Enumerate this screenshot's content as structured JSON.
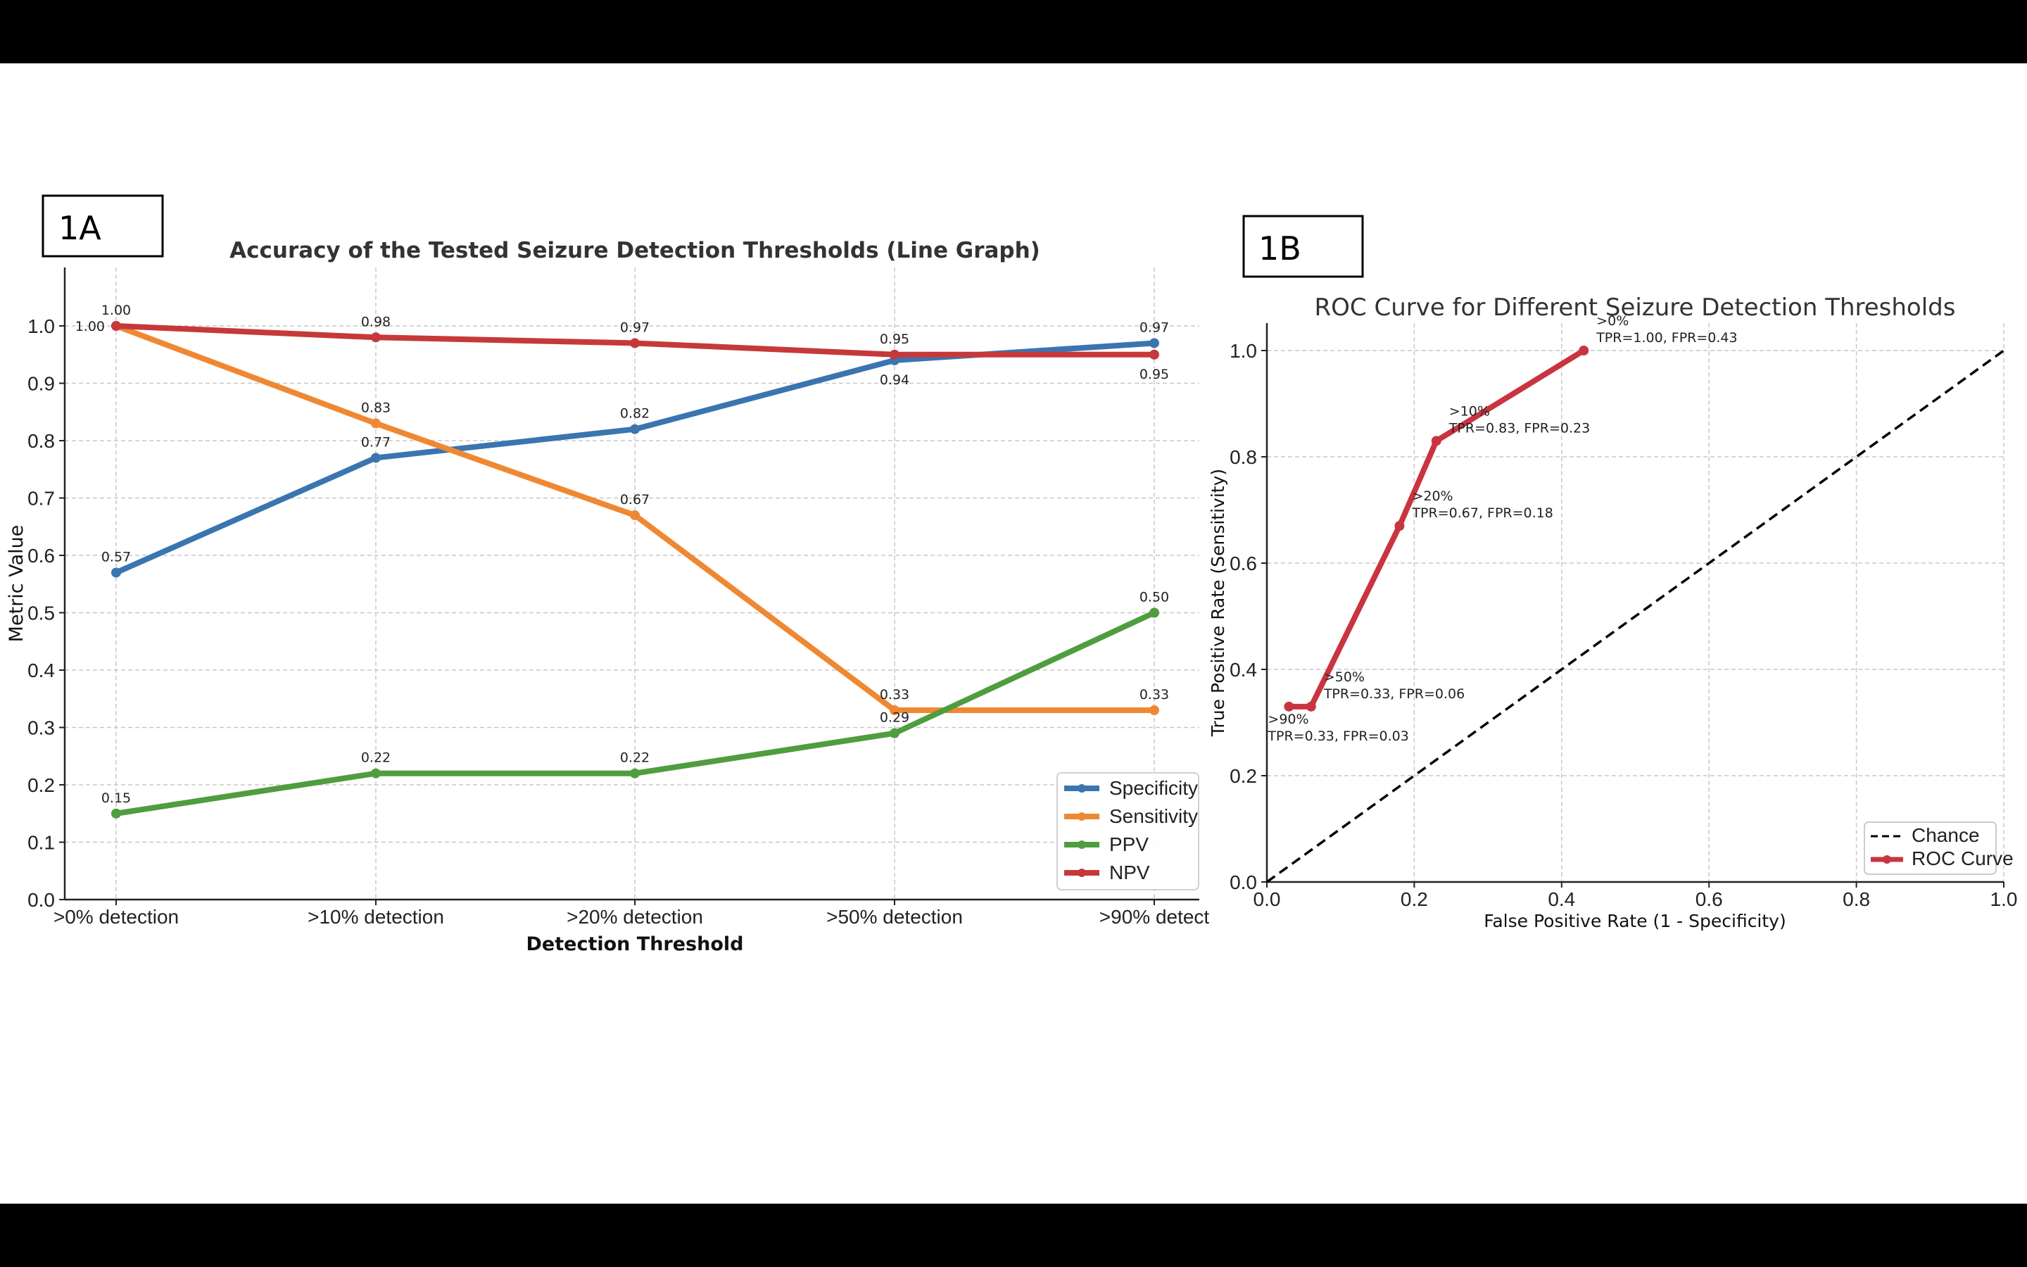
{
  "panel_labels": {
    "a": "1A",
    "b": "1B"
  },
  "chart_data": [
    {
      "type": "line",
      "title": "Accuracy of the Tested Seizure Detection Thresholds (Line Graph)",
      "xlabel": "Detection Threshold",
      "ylabel": "Metric Value",
      "categories": [
        ">0% detection",
        ">10% detection",
        ">20% detection",
        ">50% detection",
        ">90% detect"
      ],
      "ylim": [
        0,
        1.1
      ],
      "yticks": [
        "0.0",
        "0.1",
        "0.2",
        "0.3",
        "0.4",
        "0.5",
        "0.6",
        "0.7",
        "0.8",
        "0.9",
        "1.0"
      ],
      "grid": true,
      "legend_position": "bottom-right",
      "series": [
        {
          "name": "Specificity",
          "color": "#3a75b0",
          "values": [
            0.57,
            0.77,
            0.82,
            0.94,
            0.97
          ],
          "labels": [
            "0.57",
            "0.77",
            "0.82",
            "0.94",
            "0.97"
          ]
        },
        {
          "name": "Sensitivity",
          "color": "#ef8833",
          "values": [
            1.0,
            0.83,
            0.67,
            0.33,
            0.33
          ],
          "labels": [
            "1.00",
            "0.83",
            "0.67",
            "0.33",
            "0.33"
          ]
        },
        {
          "name": "PPV",
          "color": "#4f9d3f",
          "values": [
            0.15,
            0.22,
            0.22,
            0.29,
            0.5
          ],
          "labels": [
            "0.15",
            "0.22",
            "0.22",
            "0.29",
            "0.50"
          ]
        },
        {
          "name": "NPV",
          "color": "#c6393a",
          "values": [
            1.0,
            0.98,
            0.97,
            0.95,
            0.95
          ],
          "labels": [
            "1.00",
            "0.98",
            "0.97",
            "0.95",
            "0.95"
          ]
        }
      ]
    },
    {
      "type": "line",
      "title": "ROC Curve for Different Seizure Detection Thresholds",
      "xlabel": "False Positive Rate (1 - Specificity)",
      "ylabel": "True Positive Rate (Sensitivity)",
      "xlim": [
        0,
        1.0
      ],
      "ylim": [
        0,
        1.05
      ],
      "xticks": [
        "0.0",
        "0.2",
        "0.4",
        "0.6",
        "0.8",
        "1.0"
      ],
      "yticks": [
        "0.0",
        "0.2",
        "0.4",
        "0.6",
        "0.8",
        "1.0"
      ],
      "grid": true,
      "legend_position": "bottom-right",
      "series": [
        {
          "name": "Chance",
          "color": "#000000",
          "style": "dashed",
          "x": [
            0,
            1
          ],
          "y": [
            0,
            1
          ]
        },
        {
          "name": "ROC Curve",
          "color": "#c93440",
          "x": [
            0.03,
            0.06,
            0.18,
            0.23,
            0.43
          ],
          "y": [
            0.33,
            0.33,
            0.67,
            0.83,
            1.0
          ],
          "point_labels": [
            {
              "threshold": ">90%",
              "text": "TPR=0.33, FPR=0.03"
            },
            {
              "threshold": ">50%",
              "text": "TPR=0.33, FPR=0.06"
            },
            {
              "threshold": ">20%",
              "text": "TPR=0.67, FPR=0.18"
            },
            {
              "threshold": ">10%",
              "text": "TPR=0.83, FPR=0.23"
            },
            {
              "threshold": ">0%",
              "text": "TPR=1.00, FPR=0.43"
            }
          ]
        }
      ]
    }
  ]
}
